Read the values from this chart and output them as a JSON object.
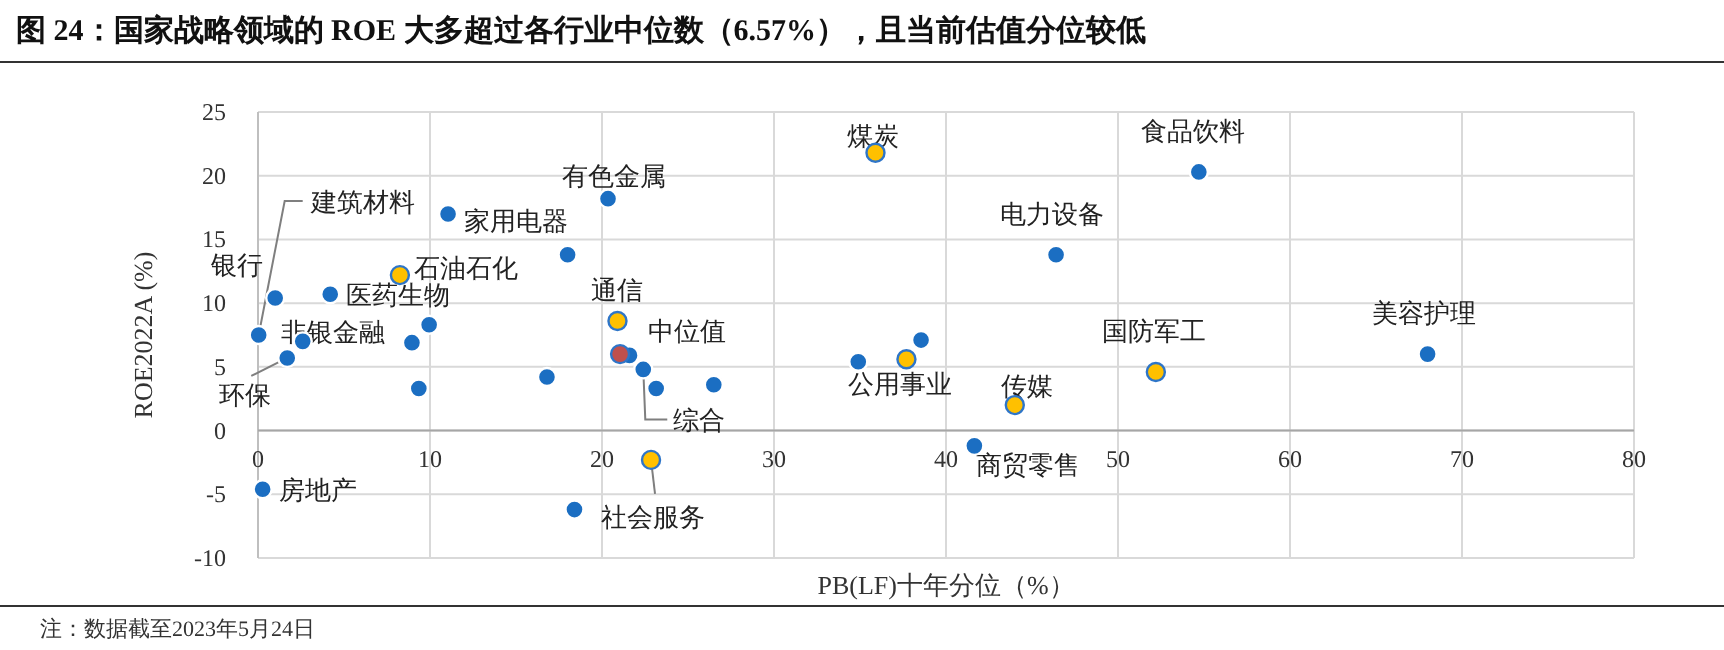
{
  "chart_data": {
    "type": "scatter",
    "title": "图 24：国家战略领域的 ROE 大多超过各行业中位数（6.57%），且当前估值分位较低",
    "xlabel": "PB(LF)十年分位（%）",
    "ylabel": "ROE2022A (%)",
    "xlim": [
      0,
      80
    ],
    "xticks": [
      0,
      10,
      20,
      30,
      40,
      50,
      60,
      70,
      80
    ],
    "ylim": [
      -10,
      25
    ],
    "yticks": [
      -10,
      -5,
      0,
      5,
      10,
      15,
      20,
      25
    ],
    "grid": true,
    "legend": false,
    "marker": "circle",
    "series": [
      {
        "color": "#1b6ec2",
        "x": [
          0.04,
          1.0,
          1.7,
          2.6,
          4.2,
          11.05,
          8.95,
          9.95,
          9.35,
          0.27,
          16.8,
          18.0,
          20.35,
          18.4,
          21.6,
          22.4,
          23.15,
          26.5,
          34.9,
          38.55,
          41.65,
          46.4,
          54.7,
          68.0
        ],
        "values": [
          7.5,
          10.4,
          5.7,
          7.0,
          10.7,
          17.0,
          6.9,
          8.3,
          3.3,
          -4.6,
          4.2,
          13.8,
          18.2,
          -6.2,
          5.9,
          4.8,
          3.3,
          3.6,
          5.4,
          7.1,
          -1.2,
          13.8,
          20.3,
          6.0
        ]
      },
      {
        "color": "#ffc000",
        "x": [
          8.25,
          35.9,
          20.9,
          22.85,
          37.7,
          44.0,
          52.2
        ],
        "values": [
          12.2,
          21.8,
          8.6,
          -2.3,
          5.6,
          2.0,
          4.6
        ]
      },
      {
        "name": "中位值",
        "color": "#c0504d",
        "x": [
          21.05
        ],
        "values": [
          6.0
        ]
      }
    ],
    "annotations": [
      {
        "text": "建筑材料",
        "x": 0.04,
        "y": 7.5
      },
      {
        "text": "银行",
        "x": 1.0,
        "y": 10.4
      },
      {
        "text": "医药生物",
        "x": 4.2,
        "y": 10.7
      },
      {
        "text": "非银金融",
        "x": 2.6,
        "y": 7.0
      },
      {
        "text": "环保",
        "x": 1.7,
        "y": 5.7
      },
      {
        "text": "石油石化",
        "x": 8.25,
        "y": 12.2
      },
      {
        "text": "家用电器",
        "x": 11.05,
        "y": 17.0
      },
      {
        "text": "有色金属",
        "x": 20.35,
        "y": 18.2
      },
      {
        "text": "通信",
        "x": 20.9,
        "y": 8.6
      },
      {
        "text": "综合",
        "x": 22.4,
        "y": 4.8
      },
      {
        "text": "社会服务",
        "x": 22.85,
        "y": -2.3
      },
      {
        "text": "房地产",
        "x": 0.27,
        "y": -4.6
      },
      {
        "text": "煤炭",
        "x": 35.9,
        "y": 21.8
      },
      {
        "text": "食品饮料",
        "x": 54.7,
        "y": 20.3
      },
      {
        "text": "电力设备",
        "x": 46.4,
        "y": 13.8
      },
      {
        "text": "国防军工",
        "x": 52.2,
        "y": 4.6
      },
      {
        "text": "美容护理",
        "x": 68.0,
        "y": 6.0
      },
      {
        "text": "公用事业",
        "x": 37.7,
        "y": 5.6
      },
      {
        "text": "传媒",
        "x": 44.0,
        "y": 2.0
      },
      {
        "text": "商贸零售",
        "x": 41.65,
        "y": -1.2
      },
      "注：数据截至2023年5月24日"
    ]
  }
}
